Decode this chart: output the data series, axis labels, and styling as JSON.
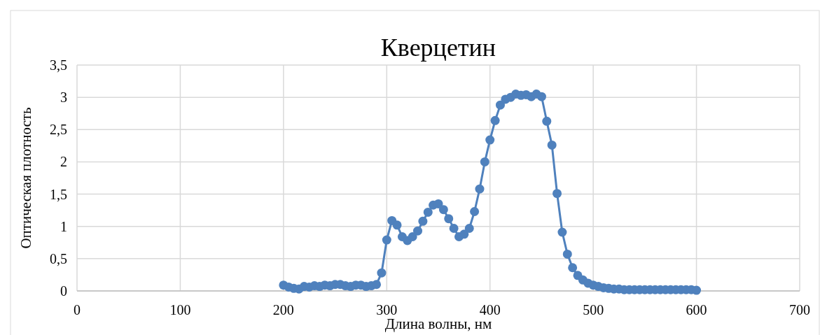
{
  "chart_data": {
    "type": "line",
    "title": "Кверцетин",
    "xlabel": "Длина волны, нм",
    "ylabel": "Оптическая плотность",
    "x": [
      200,
      205,
      210,
      215,
      220,
      225,
      230,
      235,
      240,
      245,
      250,
      255,
      260,
      265,
      270,
      275,
      280,
      285,
      290,
      295,
      300,
      305,
      310,
      315,
      320,
      325,
      330,
      335,
      340,
      345,
      350,
      355,
      360,
      365,
      370,
      375,
      380,
      385,
      390,
      395,
      400,
      405,
      410,
      415,
      420,
      425,
      430,
      435,
      440,
      445,
      450,
      455,
      460,
      465,
      470,
      475,
      480,
      485,
      490,
      495,
      500,
      505,
      510,
      515,
      520,
      525,
      530,
      535,
      540,
      545,
      550,
      555,
      560,
      565,
      570,
      575,
      580,
      585,
      590,
      595,
      600
    ],
    "series": [
      {
        "color": "#4f81bd",
        "values": [
          0.09,
          0.06,
          0.04,
          0.03,
          0.07,
          0.06,
          0.08,
          0.07,
          0.09,
          0.08,
          0.1,
          0.1,
          0.08,
          0.07,
          0.09,
          0.09,
          0.07,
          0.08,
          0.1,
          0.28,
          0.79,
          1.09,
          1.02,
          0.84,
          0.78,
          0.84,
          0.93,
          1.08,
          1.22,
          1.33,
          1.35,
          1.26,
          1.12,
          0.97,
          0.84,
          0.88,
          0.97,
          1.23,
          1.58,
          2.0,
          2.34,
          2.64,
          2.88,
          2.97,
          3.0,
          3.05,
          3.03,
          3.04,
          3.01,
          3.05,
          3.01,
          2.63,
          2.26,
          1.51,
          0.91,
          0.57,
          0.36,
          0.24,
          0.17,
          0.12,
          0.09,
          0.07,
          0.05,
          0.04,
          0.03,
          0.03,
          0.02,
          0.02,
          0.02,
          0.02,
          0.02,
          0.02,
          0.02,
          0.02,
          0.02,
          0.02,
          0.02,
          0.02,
          0.02,
          0.02,
          0.01
        ]
      }
    ],
    "xlim": [
      0,
      700
    ],
    "xticks": [
      0,
      100,
      200,
      300,
      400,
      500,
      600,
      700
    ],
    "ylim": [
      0,
      3.5
    ],
    "yticks": [
      0,
      {
        "value": 0.5,
        "label": "0,5"
      },
      1,
      {
        "value": 1.5,
        "label": "1,5"
      },
      2,
      {
        "value": 2.5,
        "label": "2,5"
      },
      3,
      {
        "value": 3.5,
        "label": "3,5"
      }
    ],
    "grid": true,
    "marker": "circle",
    "line_style": "solid"
  }
}
